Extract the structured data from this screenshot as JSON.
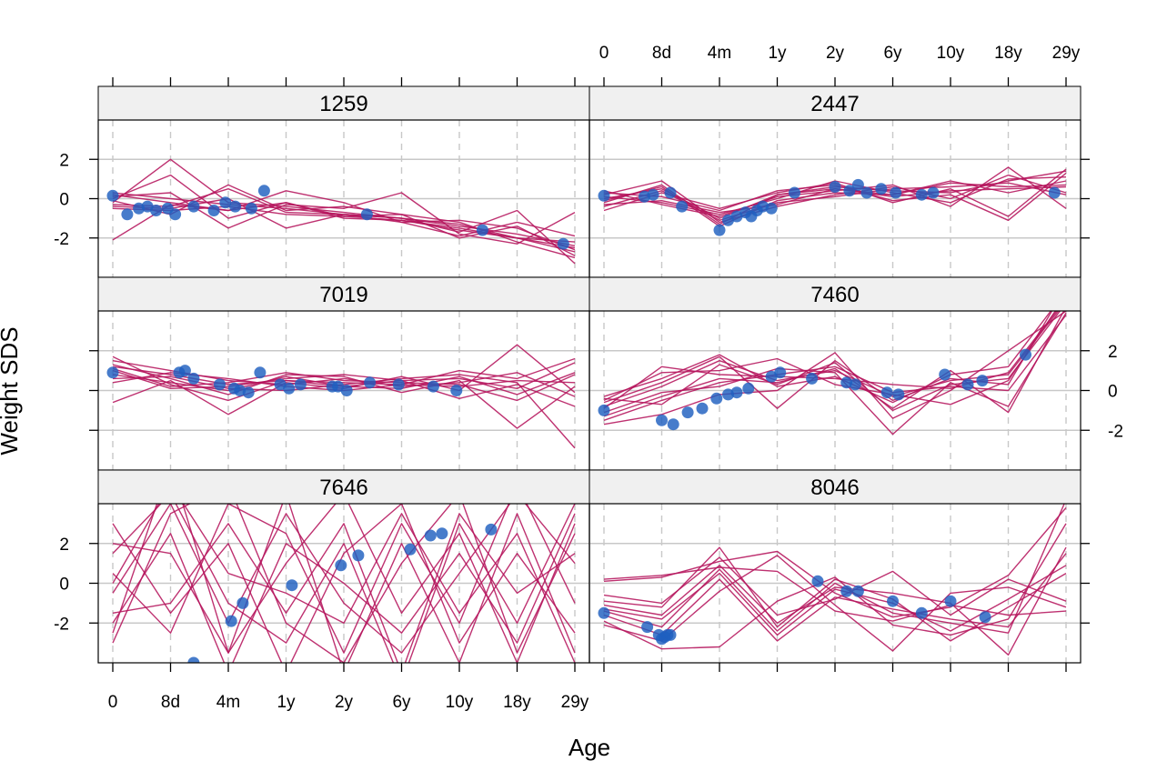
{
  "chart_data": {
    "type": "line",
    "xlabel": "Age",
    "ylabel": "Weight SDS",
    "x_tick_labels": [
      "0",
      "8d",
      "4m",
      "1y",
      "2y",
      "6y",
      "10y",
      "18y",
      "29y"
    ],
    "ylim": [
      -4,
      4
    ],
    "y_ticks": [
      -2,
      0,
      2
    ],
    "grid": true,
    "colors": {
      "lines": "#b5145c",
      "points": "#1f5fbf",
      "strip": "#f0f0f0",
      "grid": "#c8c8c8"
    },
    "panels": [
      {
        "label": "1259",
        "observed": {
          "x": [
            0.0,
            0.25,
            0.45,
            0.6,
            0.75,
            0.95,
            1.08,
            1.4,
            1.75,
            1.95,
            2.12,
            2.4,
            2.62,
            4.4,
            6.4,
            7.8
          ],
          "y": [
            0.15,
            -0.8,
            -0.5,
            -0.4,
            -0.6,
            -0.5,
            -0.8,
            -0.4,
            -0.6,
            -0.2,
            -0.4,
            -0.5,
            0.4,
            -0.8,
            -1.6,
            -2.3
          ]
        },
        "trajectories": [
          [
            -0.5,
            -0.6,
            -0.4,
            -0.8,
            -0.9,
            -1.1,
            -1.5,
            -2.0,
            -2.7
          ],
          [
            0.3,
            0.0,
            -0.3,
            -0.5,
            -0.8,
            -1.0,
            -1.3,
            -2.0,
            -2.5
          ],
          [
            -0.2,
            2.0,
            -0.2,
            -0.4,
            -0.7,
            -1.0,
            -1.4,
            -1.8,
            -2.4
          ],
          [
            -2.1,
            -0.3,
            -0.6,
            0.4,
            -0.2,
            -1.2,
            -1.9,
            -1.2,
            -1.9
          ],
          [
            0.0,
            1.2,
            -1.0,
            -0.2,
            -0.9,
            -0.8,
            -1.2,
            -2.2,
            -3.0
          ],
          [
            -0.3,
            -0.4,
            0.5,
            -0.7,
            -0.8,
            -1.0,
            -1.7,
            -0.6,
            -3.3
          ],
          [
            0.1,
            0.3,
            -1.5,
            -0.3,
            -0.5,
            0.3,
            -1.8,
            -2.3,
            -0.7
          ],
          [
            -0.4,
            -0.5,
            0.0,
            -1.5,
            -0.8,
            -1.2,
            -1.1,
            -1.5,
            -2.6
          ],
          [
            0.2,
            -0.2,
            -0.6,
            -0.2,
            -1.0,
            -1.1,
            -1.6,
            -2.0,
            -2.2
          ],
          [
            -0.1,
            -0.8,
            0.7,
            -0.6,
            -0.4,
            -0.8,
            -2.0,
            -1.4,
            -2.9
          ]
        ]
      },
      {
        "label": "2447",
        "observed": {
          "x": [
            0.0,
            0.7,
            0.85,
            1.15,
            1.35,
            2.0,
            2.15,
            2.3,
            2.45,
            2.55,
            2.65,
            2.75,
            2.9,
            3.3,
            4.0,
            4.25,
            4.4,
            4.55,
            4.8,
            5.05,
            5.5,
            5.7,
            7.8
          ],
          "y": [
            0.15,
            0.1,
            0.2,
            0.3,
            -0.4,
            -1.6,
            -1.1,
            -0.9,
            -0.7,
            -0.9,
            -0.6,
            -0.4,
            -0.5,
            0.3,
            0.6,
            0.4,
            0.7,
            0.3,
            0.5,
            0.3,
            0.2,
            0.3,
            0.3
          ]
        },
        "trajectories": [
          [
            0.0,
            0.5,
            -1.0,
            0.2,
            0.6,
            0.4,
            0.3,
            0.9,
            1.4
          ],
          [
            -0.3,
            -0.1,
            -0.7,
            -0.3,
            0.5,
            0.2,
            0.8,
            0.6,
            0.7
          ],
          [
            0.2,
            0.9,
            -1.2,
            -0.4,
            0.2,
            0.6,
            0.0,
            1.2,
            0.3
          ],
          [
            -0.6,
            0.3,
            -0.5,
            0.3,
            0.8,
            -0.2,
            0.5,
            -0.9,
            1.5
          ],
          [
            0.4,
            -0.3,
            -0.9,
            0.1,
            0.4,
            0.7,
            -0.4,
            1.6,
            -0.5
          ],
          [
            -0.1,
            0.6,
            -1.4,
            -0.1,
            0.3,
            0.2,
            0.9,
            0.3,
            0.9
          ],
          [
            0.3,
            0.1,
            -0.6,
            0.4,
            0.7,
            -0.1,
            0.2,
            -1.1,
            1.3
          ],
          [
            -0.4,
            0.4,
            -1.1,
            -0.2,
            0.1,
            0.5,
            0.6,
            0.8,
            0.2
          ],
          [
            0.1,
            -0.2,
            -0.8,
            0.0,
            0.9,
            0.3,
            -0.2,
            1.0,
            1.1
          ],
          [
            -0.2,
            0.7,
            -1.3,
            0.2,
            0.5,
            0.1,
            0.4,
            0.5,
            0.6
          ]
        ]
      },
      {
        "label": "7019",
        "observed": {
          "x": [
            0.0,
            1.15,
            1.25,
            1.4,
            1.85,
            2.1,
            2.2,
            2.35,
            2.55,
            2.9,
            3.05,
            3.25,
            3.8,
            3.9,
            4.05,
            4.45,
            4.95,
            5.55,
            5.95
          ],
          "y": [
            0.9,
            0.9,
            1.0,
            0.6,
            0.3,
            0.1,
            0.0,
            -0.1,
            0.9,
            0.3,
            0.1,
            0.3,
            0.2,
            0.2,
            0.0,
            0.4,
            0.3,
            0.2,
            0.0
          ]
        },
        "trajectories": [
          [
            1.2,
            0.8,
            0.3,
            0.5,
            0.4,
            0.3,
            0.2,
            0.5,
            0.4
          ],
          [
            0.8,
            0.4,
            0.0,
            0.7,
            0.2,
            0.5,
            0.6,
            0.1,
            1.4
          ],
          [
            1.5,
            1.0,
            0.5,
            0.3,
            0.6,
            0.2,
            0.4,
            0.9,
            -0.3
          ],
          [
            -0.6,
            0.5,
            -1.2,
            0.4,
            0.1,
            0.7,
            0.0,
            2.3,
            -0.1
          ],
          [
            1.1,
            0.2,
            0.4,
            0.9,
            0.5,
            0.4,
            0.3,
            -0.5,
            0.8
          ],
          [
            0.6,
            0.7,
            0.1,
            0.0,
            0.3,
            0.6,
            0.8,
            0.4,
            -2.9
          ],
          [
            1.3,
            0.6,
            -0.2,
            0.8,
            0.7,
            -0.1,
            0.5,
            -1.9,
            0.2
          ],
          [
            0.4,
            0.9,
            0.6,
            0.2,
            0.0,
            0.3,
            1.0,
            0.6,
            1.6
          ],
          [
            1.0,
            0.1,
            0.2,
            0.6,
            0.8,
            0.5,
            -0.4,
            0.3,
            -0.8
          ],
          [
            1.7,
            0.3,
            -0.5,
            0.5,
            0.2,
            0.1,
            0.7,
            -0.2,
            0.9
          ]
        ]
      },
      {
        "label": "7460",
        "observed": {
          "x": [
            0.0,
            1.0,
            1.2,
            1.45,
            1.7,
            1.95,
            2.15,
            2.3,
            2.5,
            2.9,
            3.05,
            3.6,
            4.2,
            4.35,
            4.9,
            5.1,
            5.9,
            6.3,
            6.55,
            7.3
          ],
          "y": [
            -1.0,
            -1.5,
            -1.7,
            -1.1,
            -0.9,
            -0.4,
            -0.2,
            -0.1,
            0.1,
            0.7,
            0.9,
            0.6,
            0.4,
            0.3,
            -0.1,
            -0.2,
            0.8,
            0.3,
            0.5,
            1.8
          ]
        },
        "trajectories": [
          [
            -0.8,
            0.2,
            1.5,
            0.5,
            1.0,
            -0.3,
            0.5,
            0.8,
            4.5
          ],
          [
            -1.5,
            -0.5,
            0.4,
            0.8,
            1.2,
            -0.1,
            0.2,
            0.0,
            3.8
          ],
          [
            -0.3,
            0.6,
            1.8,
            0.2,
            0.7,
            -0.6,
            0.8,
            1.2,
            5.0
          ],
          [
            -1.7,
            -1.2,
            -0.2,
            0.0,
            1.9,
            -1.4,
            0.0,
            2.0,
            4.0
          ],
          [
            -0.5,
            0.9,
            1.0,
            1.6,
            0.3,
            -0.2,
            -0.7,
            0.5,
            4.8
          ],
          [
            -1.1,
            -0.1,
            0.2,
            1.1,
            0.9,
            -2.2,
            0.4,
            -0.8,
            3.9
          ],
          [
            -0.6,
            0.4,
            1.7,
            -0.9,
            1.5,
            -0.5,
            0.6,
            0.3,
            5.2
          ],
          [
            -1.3,
            -0.3,
            0.6,
            0.4,
            1.1,
            -0.9,
            1.0,
            -1.1,
            4.2
          ],
          [
            -0.9,
            1.2,
            0.8,
            0.7,
            0.6,
            0.3,
            0.1,
            0.9,
            4.6
          ],
          [
            -0.4,
            -0.7,
            1.3,
            0.3,
            1.4,
            -1.0,
            0.3,
            0.6,
            4.4
          ]
        ]
      },
      {
        "label": "7646",
        "observed": {
          "x": [
            1.4,
            2.05,
            2.25,
            3.1,
            3.95,
            4.25,
            5.15,
            5.5,
            5.7,
            6.55
          ],
          "y": [
            -4.0,
            -1.9,
            -1.0,
            -0.1,
            0.9,
            1.4,
            1.7,
            2.4,
            2.5,
            2.7
          ]
        },
        "trajectories": [
          [
            1.5,
            4.5,
            -1.0,
            -3.0,
            2.0,
            -5.0,
            3.0,
            -2.0,
            4.0
          ],
          [
            -3.0,
            3.5,
            5.0,
            -2.0,
            -4.0,
            1.0,
            4.5,
            -3.5,
            2.5
          ],
          [
            0.5,
            -2.5,
            4.0,
            2.5,
            -3.5,
            3.0,
            -2.0,
            5.0,
            -1.0
          ],
          [
            -2.5,
            6.0,
            -3.5,
            1.0,
            4.5,
            -1.5,
            2.5,
            -4.0,
            3.0
          ],
          [
            3.0,
            -1.5,
            2.0,
            -4.5,
            1.5,
            4.0,
            -3.0,
            1.5,
            -2.5
          ],
          [
            -0.5,
            4.0,
            -2.0,
            3.5,
            -1.0,
            -3.5,
            0.5,
            4.5,
            1.0
          ],
          [
            2.0,
            1.5,
            -3.5,
            4.5,
            -4.5,
            2.0,
            -4.0,
            3.5,
            -3.5
          ],
          [
            -1.5,
            -1.0,
            3.0,
            -1.5,
            3.0,
            -4.5,
            3.5,
            -0.5,
            1.5
          ],
          [
            0.0,
            5.0,
            0.5,
            -0.5,
            -2.0,
            3.5,
            -1.5,
            2.5,
            -4.0
          ],
          [
            -2.0,
            2.5,
            -4.5,
            2.0,
            0.0,
            -2.5,
            1.5,
            -3.0,
            3.5
          ]
        ]
      },
      {
        "label": "8046",
        "observed": {
          "x": [
            0.0,
            0.75,
            0.95,
            1.0,
            1.05,
            1.1,
            1.15,
            3.7,
            4.2,
            4.4,
            5.0,
            5.5,
            6.0,
            6.6
          ],
          "y": [
            -1.5,
            -2.2,
            -2.6,
            -2.8,
            -2.7,
            -2.6,
            -2.6,
            0.1,
            -0.4,
            -0.4,
            -0.9,
            -1.5,
            -0.9,
            -1.7
          ]
        },
        "trajectories": [
          [
            -1.3,
            -1.8,
            0.5,
            -2.6,
            -0.3,
            -1.0,
            -2.4,
            -0.8,
            0.9
          ],
          [
            -1.6,
            -2.6,
            0.2,
            -2.9,
            -0.7,
            -1.3,
            -1.8,
            -2.2,
            1.5
          ],
          [
            -0.9,
            -1.2,
            1.8,
            -2.2,
            0.2,
            -0.8,
            -2.9,
            -1.2,
            0.5
          ],
          [
            0.1,
            0.3,
            1.1,
            1.6,
            -0.5,
            -1.7,
            -1.2,
            0.4,
            3.8
          ],
          [
            -2.1,
            -2.9,
            -0.4,
            1.4,
            -1.1,
            -3.4,
            -0.5,
            -0.2,
            -1.2
          ],
          [
            -1.4,
            -2.2,
            0.7,
            -2.4,
            0.0,
            -1.5,
            -2.0,
            -2.5,
            4.2
          ],
          [
            -0.6,
            -1.0,
            1.3,
            -1.6,
            -0.8,
            0.6,
            -1.6,
            0.2,
            -0.9
          ],
          [
            -1.9,
            -3.3,
            -3.2,
            -0.9,
            0.3,
            -2.1,
            -2.6,
            -1.8,
            3.0
          ],
          [
            -1.1,
            -1.6,
            0.9,
            -2.0,
            -0.2,
            -0.5,
            -1.0,
            -3.6,
            1.8
          ],
          [
            0.2,
            0.4,
            0.8,
            0.6,
            -1.4,
            -1.9,
            -1.1,
            -1.6,
            -1.4
          ]
        ]
      }
    ]
  }
}
